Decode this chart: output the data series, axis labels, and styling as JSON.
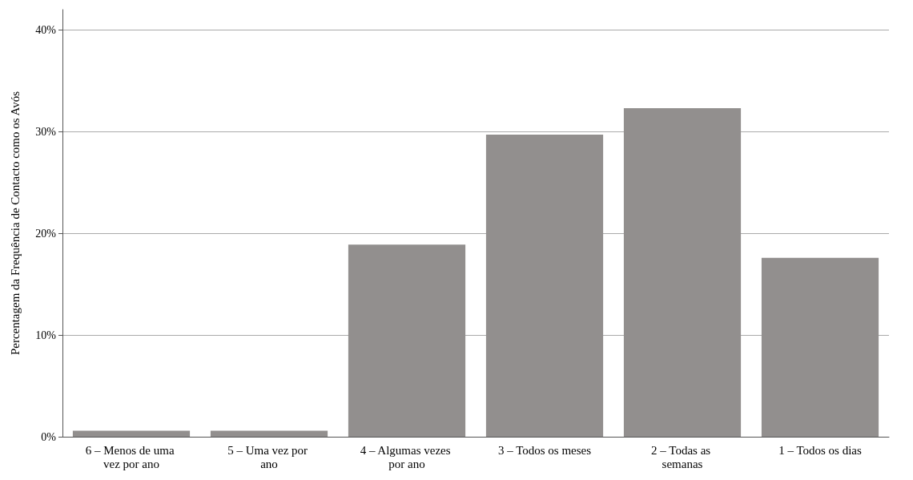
{
  "chart_data": {
    "type": "bar",
    "ylabel": "Percentagem da Frequência de Contacto como os Avós",
    "categories": [
      "6 – Menos de uma vez por ano",
      "5 – Uma vez por ano",
      "4 – Algumas vezes por ano",
      "3 – Todos os meses",
      "2 – Todas as semanas",
      "1 – Todos os dias"
    ],
    "values": [
      0.6,
      0.6,
      18.9,
      29.7,
      32.3,
      17.6
    ],
    "color": "#928f8e",
    "ylim": [
      0,
      42
    ],
    "yticks": [
      {
        "value": 0,
        "label": "0%"
      },
      {
        "value": 10,
        "label": "10%"
      },
      {
        "value": 20,
        "label": "20%"
      },
      {
        "value": 30,
        "label": "30%"
      },
      {
        "value": 40,
        "label": "40%"
      }
    ],
    "grid": "y"
  }
}
